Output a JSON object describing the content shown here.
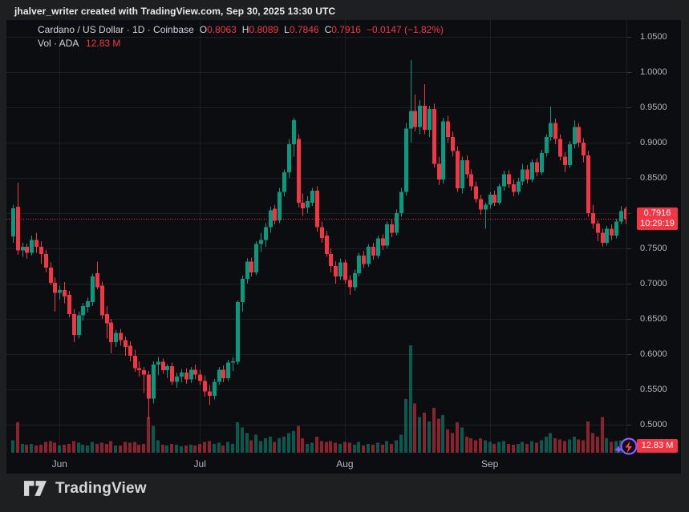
{
  "attribution": "jhalver_writer created with TradingView.com, Sep 30, 2025 13:30 UTC",
  "legend": {
    "title": "Cardano / US Dollar · 1D · Coinbase",
    "ohlc": [
      {
        "label": "O",
        "value": "0.8063"
      },
      {
        "label": "H",
        "value": "0.8089"
      },
      {
        "label": "L",
        "value": "0.7846"
      },
      {
        "label": "C",
        "value": "0.7916"
      }
    ],
    "change": "−0.0147 (−1.82%)",
    "volume_label": "Vol · ADA",
    "volume_value": "12.83 M"
  },
  "price_badge": {
    "price": "0.7916",
    "countdown": "10:29:19"
  },
  "volume_badge": {
    "value": "12.83 M"
  },
  "logo_text": "TradingView",
  "colors": {
    "up": "#089981",
    "down": "#f23645",
    "vol_up": "rgba(8,153,129,0.55)",
    "vol_down": "rgba(242,54,69,0.55)",
    "price_line": "#f23645",
    "grid": "rgba(255,255,255,0.07)",
    "axis_text": "#b2b5be",
    "badge_bg": "#f23645"
  },
  "price_axis": {
    "labels": [
      "1.0500",
      "1.0000",
      "0.9500",
      "0.9000",
      "0.8500",
      "0.8000",
      "0.7500",
      "0.7000",
      "0.6500",
      "0.6000",
      "0.5500",
      "0.5000"
    ],
    "max": 1.05,
    "min": 0.5,
    "step": 0.05
  },
  "time_axis": {
    "months": [
      {
        "label": "Jun",
        "candle_index": 10
      },
      {
        "label": "Jul",
        "candle_index": 40
      },
      {
        "label": "Aug",
        "candle_index": 71
      },
      {
        "label": "Sep",
        "candle_index": 102
      }
    ]
  },
  "chart_data": {
    "type": "candlestick",
    "title": "Cardano / US Dollar · 1D · Coinbase",
    "ylim": [
      0.5,
      1.05
    ],
    "grid": true,
    "last_price": 0.7916,
    "last_volume_m": 12.83,
    "volume_max_m": 120,
    "ohlcv": [
      [
        0.767,
        0.812,
        0.758,
        0.807,
        14
      ],
      [
        0.809,
        0.843,
        0.741,
        0.747,
        34
      ],
      [
        0.747,
        0.758,
        0.738,
        0.752,
        10
      ],
      [
        0.752,
        0.757,
        0.735,
        0.744,
        9
      ],
      [
        0.744,
        0.768,
        0.74,
        0.762,
        10
      ],
      [
        0.762,
        0.772,
        0.744,
        0.752,
        8
      ],
      [
        0.752,
        0.76,
        0.728,
        0.742,
        9
      ],
      [
        0.742,
        0.748,
        0.716,
        0.723,
        12
      ],
      [
        0.723,
        0.73,
        0.698,
        0.701,
        13
      ],
      [
        0.701,
        0.709,
        0.66,
        0.687,
        11
      ],
      [
        0.687,
        0.697,
        0.678,
        0.691,
        8
      ],
      [
        0.691,
        0.702,
        0.672,
        0.682,
        9
      ],
      [
        0.684,
        0.69,
        0.652,
        0.657,
        10
      ],
      [
        0.657,
        0.664,
        0.617,
        0.627,
        13
      ],
      [
        0.627,
        0.66,
        0.622,
        0.655,
        11
      ],
      [
        0.655,
        0.673,
        0.648,
        0.668,
        9
      ],
      [
        0.667,
        0.68,
        0.659,
        0.675,
        8
      ],
      [
        0.674,
        0.714,
        0.668,
        0.71,
        12
      ],
      [
        0.715,
        0.731,
        0.692,
        0.695,
        10
      ],
      [
        0.697,
        0.703,
        0.65,
        0.655,
        11
      ],
      [
        0.657,
        0.668,
        0.622,
        0.644,
        10
      ],
      [
        0.645,
        0.65,
        0.601,
        0.617,
        13
      ],
      [
        0.617,
        0.634,
        0.61,
        0.63,
        8
      ],
      [
        0.63,
        0.636,
        0.612,
        0.62,
        8
      ],
      [
        0.62,
        0.625,
        0.598,
        0.61,
        12
      ],
      [
        0.612,
        0.618,
        0.59,
        0.598,
        11
      ],
      [
        0.598,
        0.606,
        0.575,
        0.58,
        12
      ],
      [
        0.58,
        0.59,
        0.568,
        0.577,
        9
      ],
      [
        0.577,
        0.582,
        0.545,
        0.571,
        10
      ],
      [
        0.571,
        0.576,
        0.508,
        0.537,
        40
      ],
      [
        0.537,
        0.59,
        0.53,
        0.585,
        30
      ],
      [
        0.585,
        0.596,
        0.57,
        0.589,
        14
      ],
      [
        0.589,
        0.594,
        0.572,
        0.577,
        9
      ],
      [
        0.577,
        0.586,
        0.566,
        0.583,
        8
      ],
      [
        0.583,
        0.588,
        0.556,
        0.561,
        10
      ],
      [
        0.561,
        0.574,
        0.552,
        0.568,
        9
      ],
      [
        0.568,
        0.579,
        0.56,
        0.574,
        7
      ],
      [
        0.574,
        0.58,
        0.558,
        0.564,
        8
      ],
      [
        0.564,
        0.582,
        0.559,
        0.578,
        9
      ],
      [
        0.578,
        0.585,
        0.564,
        0.571,
        8
      ],
      [
        0.571,
        0.578,
        0.556,
        0.562,
        10
      ],
      [
        0.562,
        0.57,
        0.54,
        0.547,
        12
      ],
      [
        0.547,
        0.556,
        0.528,
        0.541,
        13
      ],
      [
        0.541,
        0.565,
        0.536,
        0.561,
        10
      ],
      [
        0.561,
        0.582,
        0.556,
        0.578,
        11
      ],
      [
        0.578,
        0.584,
        0.56,
        0.566,
        8
      ],
      [
        0.566,
        0.592,
        0.562,
        0.588,
        12
      ],
      [
        0.588,
        0.596,
        0.576,
        0.59,
        10
      ],
      [
        0.589,
        0.676,
        0.585,
        0.674,
        34
      ],
      [
        0.674,
        0.712,
        0.66,
        0.707,
        28
      ],
      [
        0.707,
        0.736,
        0.7,
        0.731,
        22
      ],
      [
        0.731,
        0.737,
        0.71,
        0.716,
        14
      ],
      [
        0.716,
        0.76,
        0.712,
        0.756,
        20
      ],
      [
        0.756,
        0.772,
        0.745,
        0.762,
        13
      ],
      [
        0.762,
        0.786,
        0.752,
        0.78,
        16
      ],
      [
        0.78,
        0.809,
        0.772,
        0.804,
        18
      ],
      [
        0.806,
        0.812,
        0.784,
        0.789,
        12
      ],
      [
        0.79,
        0.836,
        0.786,
        0.83,
        16
      ],
      [
        0.83,
        0.862,
        0.824,
        0.858,
        18
      ],
      [
        0.858,
        0.905,
        0.85,
        0.898,
        22
      ],
      [
        0.898,
        0.935,
        0.88,
        0.932,
        24
      ],
      [
        0.905,
        0.912,
        0.808,
        0.815,
        30
      ],
      [
        0.815,
        0.828,
        0.796,
        0.807,
        16
      ],
      [
        0.808,
        0.824,
        0.8,
        0.817,
        10
      ],
      [
        0.815,
        0.836,
        0.81,
        0.832,
        11
      ],
      [
        0.832,
        0.838,
        0.774,
        0.78,
        18
      ],
      [
        0.78,
        0.788,
        0.758,
        0.765,
        13
      ],
      [
        0.768,
        0.775,
        0.738,
        0.742,
        12
      ],
      [
        0.742,
        0.75,
        0.716,
        0.725,
        13
      ],
      [
        0.725,
        0.732,
        0.7,
        0.71,
        11
      ],
      [
        0.71,
        0.736,
        0.705,
        0.73,
        10
      ],
      [
        0.73,
        0.734,
        0.7,
        0.705,
        12
      ],
      [
        0.705,
        0.712,
        0.684,
        0.695,
        11
      ],
      [
        0.695,
        0.72,
        0.69,
        0.715,
        9
      ],
      [
        0.715,
        0.744,
        0.71,
        0.74,
        12
      ],
      [
        0.74,
        0.746,
        0.722,
        0.728,
        8
      ],
      [
        0.728,
        0.756,
        0.724,
        0.752,
        10
      ],
      [
        0.752,
        0.758,
        0.734,
        0.74,
        9
      ],
      [
        0.74,
        0.768,
        0.736,
        0.764,
        11
      ],
      [
        0.764,
        0.77,
        0.748,
        0.754,
        9
      ],
      [
        0.754,
        0.788,
        0.75,
        0.784,
        13
      ],
      [
        0.784,
        0.792,
        0.766,
        0.772,
        10
      ],
      [
        0.772,
        0.805,
        0.768,
        0.8,
        14
      ],
      [
        0.8,
        0.836,
        0.795,
        0.83,
        20
      ],
      [
        0.83,
        0.928,
        0.825,
        0.92,
        60
      ],
      [
        0.92,
        1.017,
        0.9,
        0.945,
        120
      ],
      [
        0.945,
        0.968,
        0.916,
        0.922,
        55
      ],
      [
        0.922,
        0.96,
        0.912,
        0.952,
        40
      ],
      [
        0.952,
        0.983,
        0.912,
        0.918,
        45
      ],
      [
        0.918,
        0.952,
        0.908,
        0.948,
        35
      ],
      [
        0.948,
        0.955,
        0.865,
        0.87,
        50
      ],
      [
        0.87,
        0.88,
        0.84,
        0.848,
        38
      ],
      [
        0.848,
        0.935,
        0.842,
        0.93,
        42
      ],
      [
        0.93,
        0.938,
        0.9,
        0.908,
        26
      ],
      [
        0.908,
        0.916,
        0.88,
        0.888,
        22
      ],
      [
        0.888,
        0.895,
        0.83,
        0.835,
        34
      ],
      [
        0.835,
        0.88,
        0.828,
        0.875,
        28
      ],
      [
        0.875,
        0.882,
        0.85,
        0.855,
        18
      ],
      [
        0.855,
        0.862,
        0.832,
        0.838,
        16
      ],
      [
        0.838,
        0.845,
        0.815,
        0.82,
        14
      ],
      [
        0.82,
        0.826,
        0.798,
        0.805,
        16
      ],
      [
        0.805,
        0.815,
        0.778,
        0.812,
        14
      ],
      [
        0.812,
        0.83,
        0.806,
        0.826,
        12
      ],
      [
        0.826,
        0.832,
        0.81,
        0.815,
        10
      ],
      [
        0.815,
        0.842,
        0.812,
        0.838,
        12
      ],
      [
        0.838,
        0.86,
        0.832,
        0.855,
        13
      ],
      [
        0.855,
        0.861,
        0.836,
        0.841,
        10
      ],
      [
        0.841,
        0.848,
        0.824,
        0.83,
        9
      ],
      [
        0.83,
        0.85,
        0.826,
        0.845,
        10
      ],
      [
        0.845,
        0.87,
        0.84,
        0.862,
        12
      ],
      [
        0.862,
        0.868,
        0.842,
        0.848,
        10
      ],
      [
        0.848,
        0.876,
        0.844,
        0.872,
        13
      ],
      [
        0.872,
        0.878,
        0.852,
        0.858,
        11
      ],
      [
        0.858,
        0.89,
        0.854,
        0.885,
        14
      ],
      [
        0.885,
        0.912,
        0.88,
        0.908,
        18
      ],
      [
        0.908,
        0.951,
        0.902,
        0.928,
        22
      ],
      [
        0.928,
        0.934,
        0.898,
        0.905,
        16
      ],
      [
        0.905,
        0.912,
        0.875,
        0.88,
        15
      ],
      [
        0.88,
        0.887,
        0.858,
        0.868,
        13
      ],
      [
        0.868,
        0.902,
        0.864,
        0.898,
        15
      ],
      [
        0.898,
        0.932,
        0.892,
        0.922,
        18
      ],
      [
        0.922,
        0.928,
        0.894,
        0.9,
        15
      ],
      [
        0.9,
        0.906,
        0.872,
        0.882,
        14
      ],
      [
        0.882,
        0.888,
        0.795,
        0.8,
        35
      ],
      [
        0.8,
        0.812,
        0.778,
        0.785,
        22
      ],
      [
        0.785,
        0.79,
        0.76,
        0.772,
        18
      ],
      [
        0.772,
        0.778,
        0.752,
        0.758,
        40
      ],
      [
        0.758,
        0.782,
        0.754,
        0.778,
        16
      ],
      [
        0.778,
        0.784,
        0.762,
        0.768,
        12
      ],
      [
        0.768,
        0.792,
        0.764,
        0.788,
        13
      ],
      [
        0.788,
        0.81,
        0.784,
        0.803,
        14
      ],
      [
        0.8063,
        0.8089,
        0.7846,
        0.7916,
        12.83
      ]
    ]
  }
}
